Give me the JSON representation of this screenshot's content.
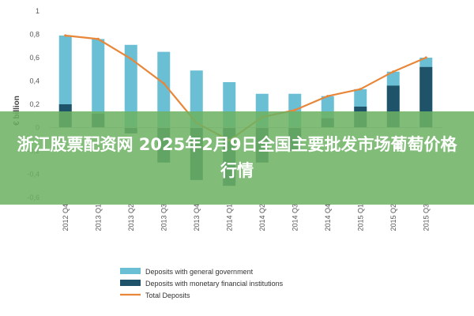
{
  "overlay": {
    "title": "浙江股票配资网 2025年2月9日全国主要批发市场葡萄价格行情"
  },
  "chart_data": {
    "type": "bar",
    "ylabel": "€ billion",
    "ylim": [
      -0.6,
      1
    ],
    "yticks": [
      1,
      0.8,
      0.6,
      0.4,
      0.2,
      0,
      -0.2,
      -0.4,
      -0.6
    ],
    "ytick_labels": [
      "1",
      "0,8",
      "0,6",
      "0,4",
      "0,2",
      "0",
      "-0,2",
      "-0,4",
      "-0,6"
    ],
    "categories": [
      "2012 Q4",
      "2013 Q1",
      "2013 Q2",
      "2013 Q3",
      "2013 Q4",
      "2014 Q1",
      "2014 Q2",
      "2014 Q3",
      "2014 Q4",
      "2015 Q1",
      "2015 Q2",
      "2015 Q3"
    ],
    "series": [
      {
        "name": "Deposits with general government",
        "kind": "bar",
        "color": "#6bbfd4",
        "values": [
          0.79,
          0.76,
          0.71,
          0.65,
          0.49,
          0.39,
          0.29,
          0.29,
          0.27,
          0.33,
          0.48,
          0.6
        ]
      },
      {
        "name": "Deposits with monetary financial institutions",
        "kind": "bar",
        "color": "#1e5369",
        "values": [
          0.2,
          0.12,
          -0.05,
          -0.3,
          -0.45,
          -0.5,
          -0.3,
          -0.2,
          0.08,
          0.18,
          0.36,
          0.52
        ]
      },
      {
        "name": "Total Deposits",
        "kind": "line",
        "color": "#e8873a",
        "values": [
          0.79,
          0.76,
          0.59,
          0.38,
          0.04,
          -0.11,
          0.09,
          0.15,
          0.27,
          0.33,
          0.48,
          0.6
        ]
      }
    ],
    "legend_position": "bottom",
    "grid": false
  }
}
